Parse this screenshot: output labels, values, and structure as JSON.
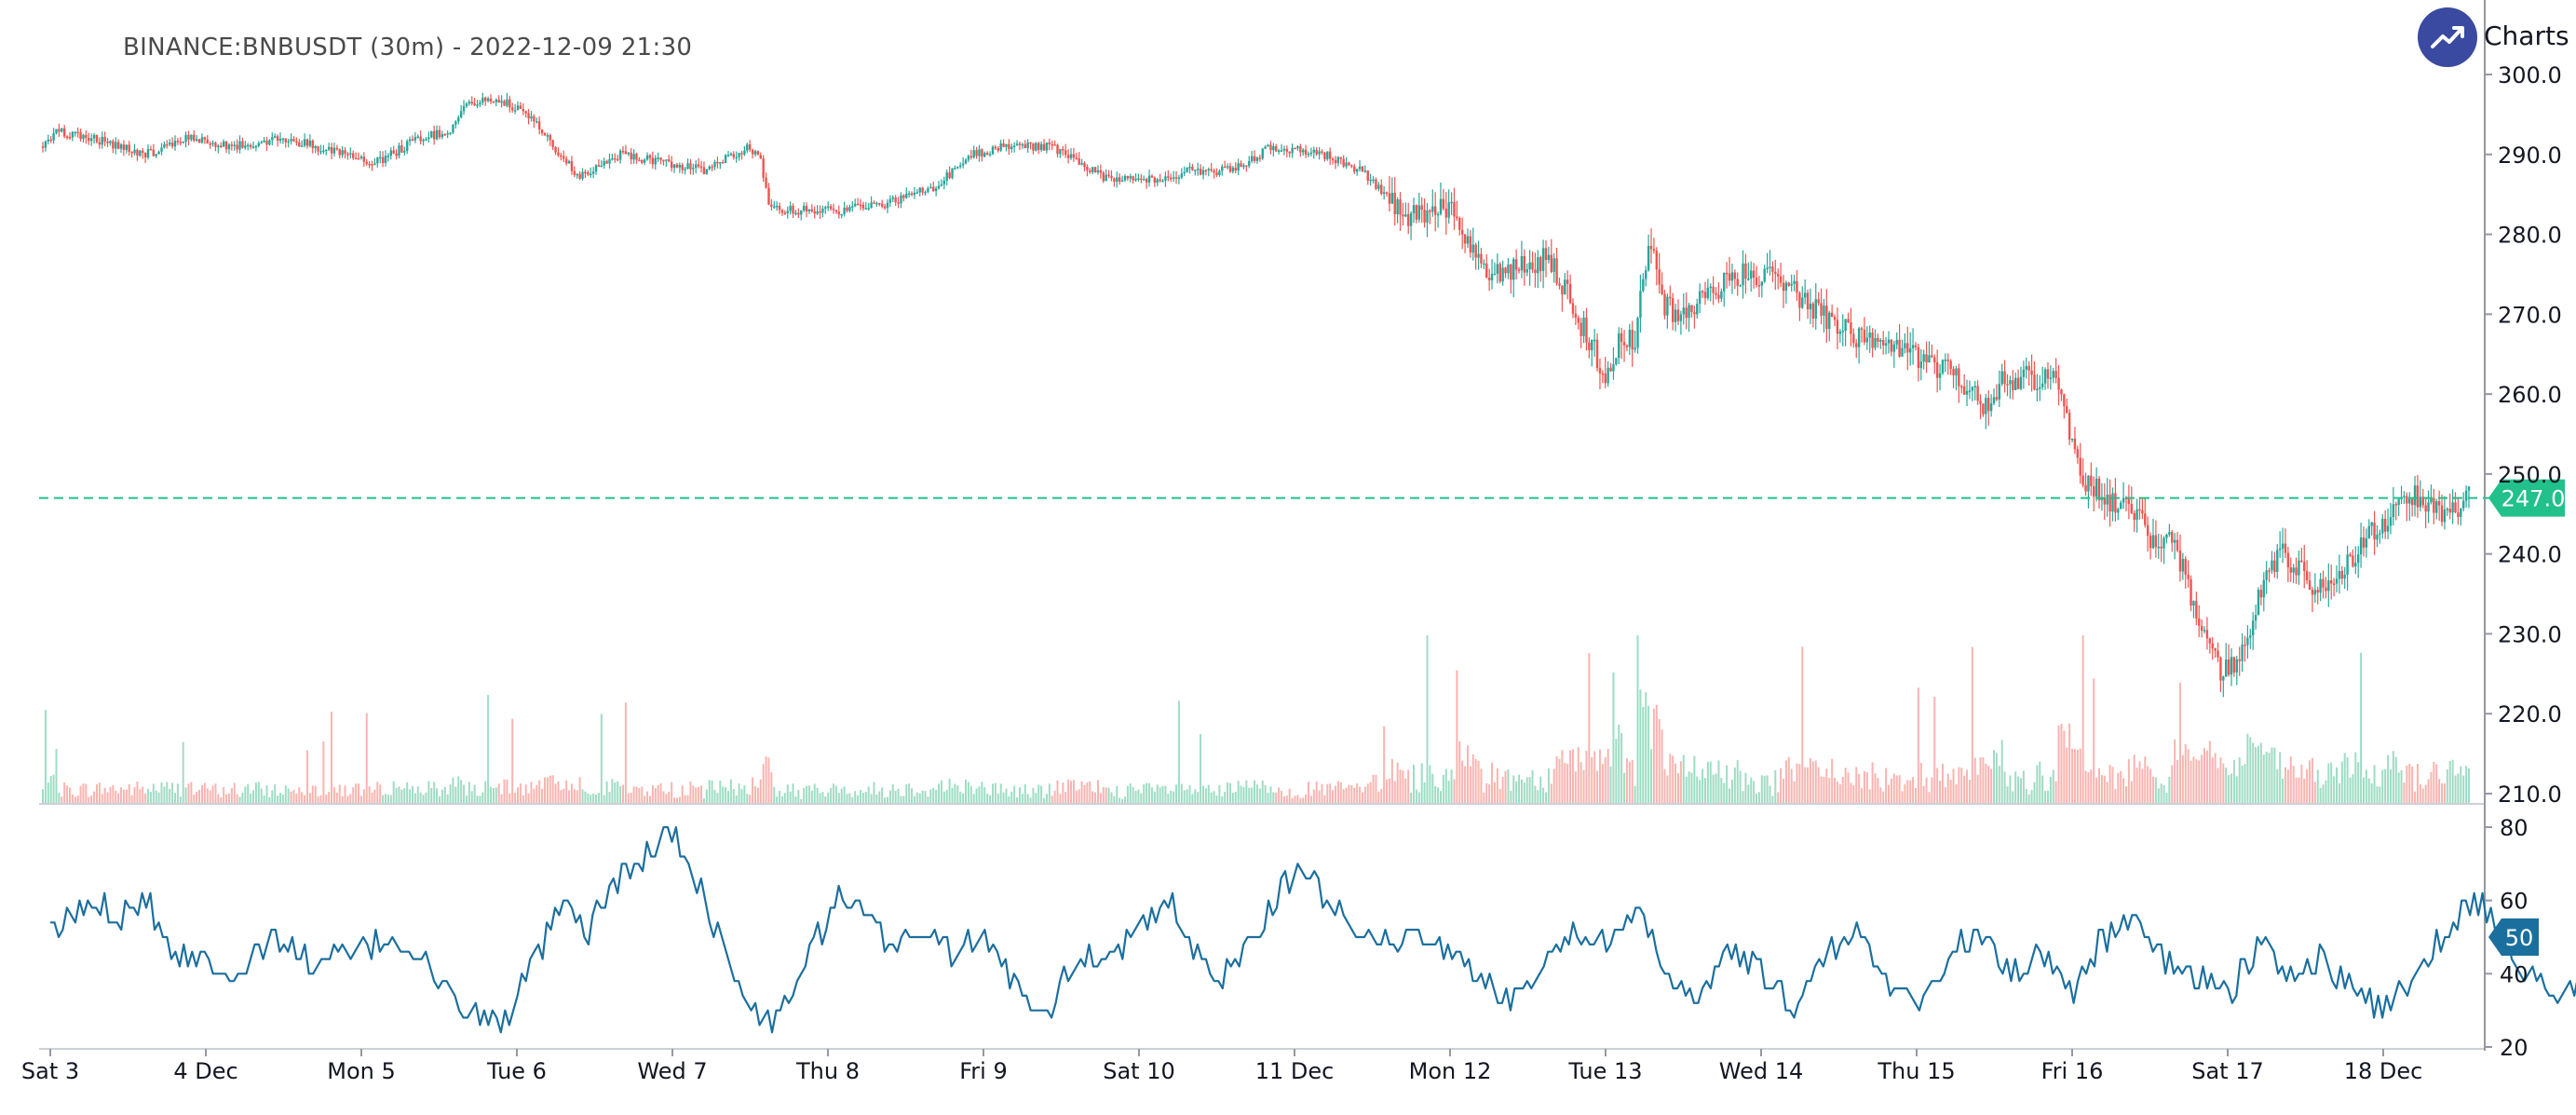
{
  "header": {
    "title": "BINANCE:BNBUSDT (30m) - 2022-12-09 21:30",
    "brand_label": "Charts p",
    "brand_icon": "trend-up-icon"
  },
  "colors": {
    "up": "#26a69a",
    "down": "#ef5350",
    "up_volume": "#9fdcc4",
    "down_volume": "#f8b4b0",
    "price_line": "#22c08a",
    "oscillator": "#1b6f9e",
    "axis": "#9598a1",
    "brand": "#3a4aa0"
  },
  "chart_data": [
    {
      "type": "candlestick",
      "symbol": "BINANCE:BNBUSDT",
      "interval": "30m",
      "title": "BINANCE:BNBUSDT (30m) - 2022-12-09 21:30",
      "ylim": [
        210,
        300
      ],
      "yticks": [
        "300.0",
        "290.0",
        "280.0",
        "270.0",
        "260.0",
        "250.0",
        "240.0",
        "230.0",
        "220.0",
        "210.0"
      ],
      "xticks": [
        "Sat 3",
        "4 Dec",
        "Mon 5",
        "Tue 6",
        "Wed 7",
        "Thu 8",
        "Fri 9",
        "Sat 10",
        "11 Dec",
        "Mon 12",
        "Tue 13",
        "Wed 14",
        "Thu 15",
        "Fri 16",
        "Sat 17",
        "18 Dec"
      ],
      "x_range_days": [
        0,
        15.75
      ],
      "price_path_day_vs_close": [
        [
          0,
          291
        ],
        [
          0.1,
          293
        ],
        [
          0.4,
          292
        ],
        [
          0.8,
          290
        ],
        [
          1.1,
          292
        ],
        [
          1.5,
          291
        ],
        [
          1.9,
          292
        ],
        [
          2.3,
          290
        ],
        [
          2.6,
          289
        ],
        [
          2.9,
          292
        ],
        [
          3.15,
          293
        ],
        [
          3.25,
          296
        ],
        [
          3.5,
          297
        ],
        [
          3.75,
          295
        ],
        [
          4.05,
          289
        ],
        [
          4.15,
          287
        ],
        [
          4.45,
          290
        ],
        [
          4.8,
          289
        ],
        [
          5.1,
          288
        ],
        [
          5.45,
          291
        ],
        [
          5.55,
          289
        ],
        [
          5.62,
          283
        ],
        [
          5.8,
          283
        ],
        [
          6.2,
          283
        ],
        [
          6.55,
          284
        ],
        [
          6.9,
          286
        ],
        [
          7.2,
          290
        ],
        [
          7.4,
          291
        ],
        [
          7.8,
          291
        ],
        [
          8.0,
          289
        ],
        [
          8.2,
          287
        ],
        [
          8.6,
          287
        ],
        [
          8.9,
          288
        ],
        [
          9.2,
          288
        ],
        [
          9.5,
          291
        ],
        [
          9.9,
          290
        ],
        [
          10.2,
          288
        ],
        [
          10.3,
          286
        ],
        [
          10.55,
          282
        ],
        [
          10.9,
          284
        ],
        [
          11.1,
          276
        ],
        [
          11.3,
          275
        ],
        [
          11.65,
          277
        ],
        [
          11.85,
          270
        ],
        [
          12.1,
          262
        ],
        [
          12.2,
          268
        ],
        [
          12.3,
          266
        ],
        [
          12.42,
          280
        ],
        [
          12.5,
          272
        ],
        [
          12.65,
          269
        ],
        [
          12.9,
          273
        ],
        [
          13.1,
          275
        ],
        [
          13.4,
          275
        ],
        [
          13.6,
          272
        ],
        [
          13.9,
          268
        ],
        [
          14.25,
          266
        ],
        [
          14.6,
          264
        ],
        [
          14.8,
          262
        ],
        [
          15.05,
          258
        ],
        [
          15.15,
          262
        ],
        [
          15.4,
          262
        ],
        [
          15.55,
          263
        ],
        [
          15.62,
          258
        ],
        [
          15.75,
          250
        ],
        [
          15.95,
          247
        ],
        [
          16.1,
          246
        ],
        [
          16.3,
          242
        ],
        [
          16.45,
          242
        ],
        [
          16.75,
          228
        ],
        [
          16.85,
          225
        ],
        [
          17.0,
          228
        ],
        [
          17.15,
          236
        ],
        [
          17.3,
          240
        ],
        [
          17.55,
          236
        ],
        [
          17.75,
          237
        ],
        [
          17.95,
          242
        ],
        [
          18.1,
          244
        ],
        [
          18.22,
          248
        ],
        [
          18.4,
          247
        ],
        [
          18.55,
          245
        ],
        [
          18.75,
          247
        ]
      ],
      "price_path_note": "",
      "last_price": "247.0",
      "last_price_value": 247.0
    },
    {
      "type": "line",
      "name": "",
      "ylim": [
        20,
        80
      ],
      "yticks": [
        "80",
        "60",
        "40",
        "20"
      ],
      "last_value": "50",
      "path_day_vs_value": [
        [
          0,
          50
        ],
        [
          0.15,
          56
        ],
        [
          0.3,
          60
        ],
        [
          0.45,
          56
        ],
        [
          0.6,
          62
        ],
        [
          0.8,
          46
        ],
        [
          1.0,
          44
        ],
        [
          1.2,
          40
        ],
        [
          1.45,
          50
        ],
        [
          1.7,
          42
        ],
        [
          1.95,
          46
        ],
        [
          2.2,
          50
        ],
        [
          2.4,
          44
        ],
        [
          2.55,
          34
        ],
        [
          2.75,
          28
        ],
        [
          2.9,
          26
        ],
        [
          3.1,
          42
        ],
        [
          3.3,
          58
        ],
        [
          3.45,
          50
        ],
        [
          3.6,
          64
        ],
        [
          3.8,
          70
        ],
        [
          3.95,
          80
        ],
        [
          4.1,
          72
        ],
        [
          4.3,
          50
        ],
        [
          4.5,
          30
        ],
        [
          4.65,
          26
        ],
        [
          4.85,
          42
        ],
        [
          5.05,
          60
        ],
        [
          5.2,
          56
        ],
        [
          5.4,
          48
        ],
        [
          5.6,
          52
        ],
        [
          5.8,
          46
        ],
        [
          6.0,
          50
        ],
        [
          6.2,
          38
        ],
        [
          6.4,
          30
        ],
        [
          6.6,
          44
        ],
        [
          6.8,
          46
        ],
        [
          7.0,
          52
        ],
        [
          7.2,
          60
        ],
        [
          7.35,
          46
        ],
        [
          7.5,
          38
        ],
        [
          7.7,
          48
        ],
        [
          7.9,
          62
        ],
        [
          8.05,
          70
        ],
        [
          8.2,
          60
        ],
        [
          8.4,
          54
        ],
        [
          8.6,
          48
        ],
        [
          8.8,
          52
        ],
        [
          9.0,
          46
        ],
        [
          9.2,
          38
        ],
        [
          9.4,
          32
        ],
        [
          9.6,
          44
        ],
        [
          9.8,
          52
        ],
        [
          10.0,
          48
        ],
        [
          10.2,
          56
        ],
        [
          10.4,
          40
        ],
        [
          10.6,
          34
        ],
        [
          10.8,
          46
        ],
        [
          11.0,
          40
        ],
        [
          11.2,
          30
        ],
        [
          11.4,
          44
        ],
        [
          11.6,
          52
        ],
        [
          11.8,
          38
        ],
        [
          12.0,
          32
        ],
        [
          12.2,
          44
        ],
        [
          12.4,
          52
        ],
        [
          12.6,
          40
        ],
        [
          12.8,
          46
        ],
        [
          13.0,
          36
        ],
        [
          13.2,
          50
        ],
        [
          13.4,
          54
        ],
        [
          13.6,
          44
        ],
        [
          13.8,
          40
        ],
        [
          14.0,
          34
        ],
        [
          14.2,
          48
        ],
        [
          14.4,
          40
        ],
        [
          14.6,
          44
        ],
        [
          14.8,
          36
        ],
        [
          15.0,
          30
        ],
        [
          15.2,
          40
        ],
        [
          15.4,
          52
        ],
        [
          15.6,
          60
        ],
        [
          15.8,
          46
        ],
        [
          16.0,
          38
        ],
        [
          16.2,
          34
        ],
        [
          16.4,
          44
        ],
        [
          16.6,
          36
        ],
        [
          16.8,
          40
        ],
        [
          17.0,
          50
        ],
        [
          17.2,
          60
        ],
        [
          17.4,
          54
        ],
        [
          17.6,
          44
        ],
        [
          17.8,
          34
        ],
        [
          17.95,
          42
        ],
        [
          18.1,
          56
        ],
        [
          18.25,
          64
        ],
        [
          18.4,
          70
        ],
        [
          18.55,
          66
        ],
        [
          18.65,
          60
        ],
        [
          18.75,
          50
        ]
      ]
    }
  ]
}
